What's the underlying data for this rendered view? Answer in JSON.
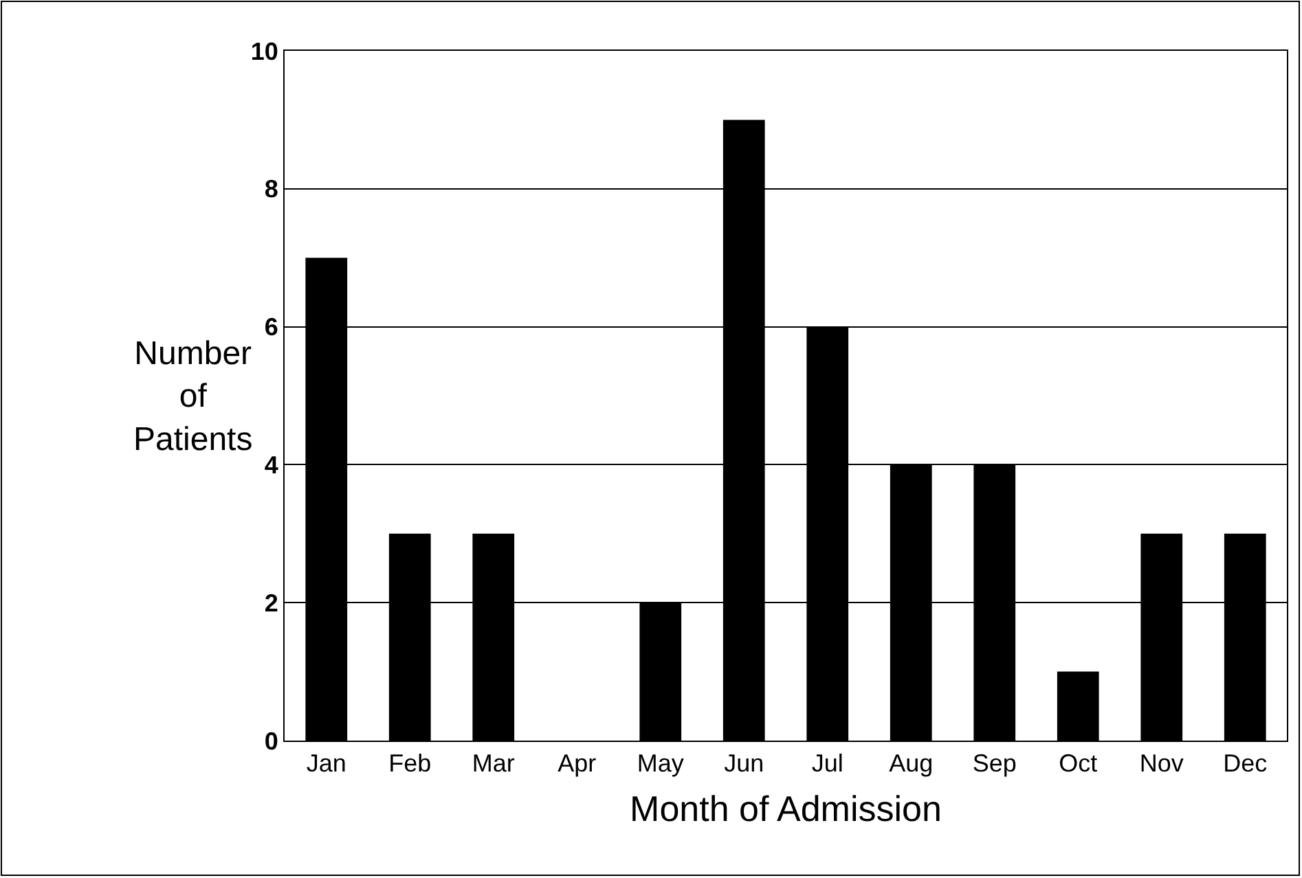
{
  "chart_data": {
    "type": "bar",
    "xlabel": "Month of Admission",
    "ylabel": "Number of Patients",
    "categories": [
      "Jan",
      "Feb",
      "Mar",
      "Apr",
      "May",
      "Jun",
      "Jul",
      "Aug",
      "Sep",
      "Oct",
      "Nov",
      "Dec"
    ],
    "values": [
      7,
      3,
      3,
      0,
      2,
      9,
      6,
      4,
      4,
      1,
      3,
      3
    ],
    "color": "#000000",
    "ylim": [
      0,
      10
    ],
    "yticks": [
      0,
      2,
      4,
      6,
      8,
      10
    ],
    "grid": "y"
  }
}
